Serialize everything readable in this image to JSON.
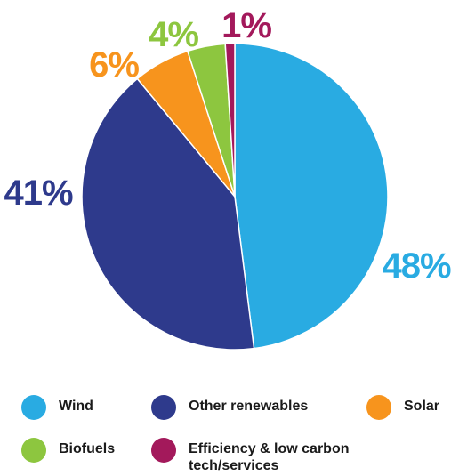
{
  "chart_data": {
    "type": "pie",
    "title": "",
    "slices": [
      {
        "label": "Wind",
        "value": 48,
        "display": "48%",
        "color": "#29abe2"
      },
      {
        "label": "Other renewables",
        "value": 41,
        "display": "41%",
        "color": "#2e3a8c"
      },
      {
        "label": "Solar",
        "value": 6,
        "display": "6%",
        "color": "#f7941d"
      },
      {
        "label": "Biofuels",
        "value": 4,
        "display": "4%",
        "color": "#8dc63f"
      },
      {
        "label": "Efficiency & low carbon tech/services",
        "value": 1,
        "display": "1%",
        "color": "#a3195b"
      }
    ],
    "legend_position": "bottom"
  }
}
